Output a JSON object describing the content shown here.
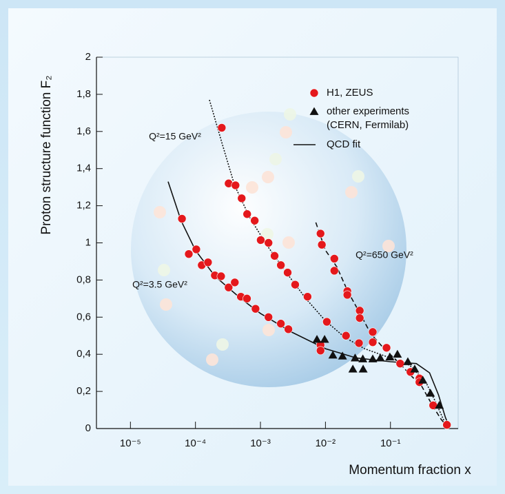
{
  "chart_data": {
    "type": "scatter",
    "x_label": "Momentum fraction x",
    "y_label": "Proton structure function F₂",
    "xlog": true,
    "xlim": [
      3e-06,
      1.1
    ],
    "ylim": [
      0,
      2
    ],
    "xticks": [
      {
        "value": 1e-05,
        "label": "10⁻⁵"
      },
      {
        "value": 0.0001,
        "label": "10⁻⁴"
      },
      {
        "value": 0.001,
        "label": "10⁻³"
      },
      {
        "value": 0.01,
        "label": "10⁻²"
      },
      {
        "value": 0.1,
        "label": "10⁻¹"
      }
    ],
    "yticks": [
      0,
      {
        "value": 0.2,
        "label": "0,2"
      },
      {
        "value": 0.4,
        "label": "0,4"
      },
      {
        "value": 0.6,
        "label": "0,6"
      },
      {
        "value": 0.8,
        "label": "0,8"
      },
      1,
      {
        "value": 1.2,
        "label": "1,2"
      },
      {
        "value": 1.4,
        "label": "1,4"
      },
      {
        "value": 1.6,
        "label": "1,6"
      },
      {
        "value": 1.8,
        "label": "1,8"
      },
      2
    ],
    "series": [
      {
        "name": "H1, ZEUS",
        "marker": "circle",
        "color": "#e4181c",
        "x": [
          6.2e-05,
          7.9e-05,
          0.000103,
          0.000125,
          0.000156,
          0.000199,
          0.000248,
          0.000324,
          0.000403,
          0.0005,
          0.00062,
          0.00084,
          0.00133,
          0.00206,
          0.00269,
          0.000254,
          0.000324,
          0.000413,
          0.000514,
          0.000624,
          0.000815,
          0.00101,
          0.00133,
          0.00165,
          0.00206,
          0.00262,
          0.00342,
          0.0053,
          0.0105,
          0.0207,
          0.0328,
          0.0084,
          0.0088,
          0.0137,
          0.0137,
          0.0217,
          0.0217,
          0.0337,
          0.0337,
          0.0534,
          0.0534,
          0.087,
          0.141,
          0.203,
          0.279,
          0.279,
          0.454,
          0.738,
          0.0084,
          0.0084
        ],
        "values": [
          1.13,
          0.94,
          0.965,
          0.88,
          0.895,
          0.825,
          0.82,
          0.76,
          0.787,
          0.71,
          0.7,
          0.645,
          0.6,
          0.565,
          0.535,
          1.62,
          1.32,
          1.31,
          1.24,
          1.155,
          1.12,
          1.015,
          1.0,
          0.93,
          0.88,
          0.84,
          0.775,
          0.71,
          0.575,
          0.5,
          0.46,
          1.05,
          0.99,
          0.915,
          0.85,
          0.74,
          0.72,
          0.635,
          0.595,
          0.52,
          0.465,
          0.435,
          0.35,
          0.305,
          0.27,
          0.25,
          0.125,
          0.02,
          0.45,
          0.42
        ]
      },
      {
        "name": "other experiments",
        "name_line2": "(CERN, Fermilab)",
        "marker": "triangle",
        "color": "#111111",
        "x": [
          0.0074,
          0.0097,
          0.013,
          0.0183,
          0.0264,
          0.0286,
          0.038,
          0.0376,
          0.0534,
          0.0698,
          0.098,
          0.128,
          0.185,
          0.236,
          0.315,
          0.412,
          0.565
        ],
        "values": [
          0.48,
          0.48,
          0.395,
          0.39,
          0.32,
          0.38,
          0.32,
          0.375,
          0.375,
          0.38,
          0.385,
          0.4,
          0.36,
          0.32,
          0.26,
          0.19,
          0.125
        ]
      }
    ],
    "fit_label": "QCD fit",
    "fit_curves": [
      {
        "dash": "solid",
        "x": [
          3.8e-05,
          6e-05,
          0.0001,
          0.0002,
          0.0005,
          0.001,
          0.003,
          0.01,
          0.03,
          0.1,
          0.25,
          0.4,
          0.55,
          0.7,
          0.8
        ],
        "values": [
          1.33,
          1.12,
          0.96,
          0.82,
          0.7,
          0.62,
          0.52,
          0.43,
          0.38,
          0.36,
          0.35,
          0.3,
          0.18,
          0.06,
          0.01
        ]
      },
      {
        "dash": "dotted",
        "x": [
          0.000164,
          0.00025,
          0.0004,
          0.0007,
          0.0013,
          0.0025,
          0.005,
          0.01,
          0.02,
          0.04,
          0.1,
          0.2,
          0.35,
          0.5,
          0.65,
          0.78
        ],
        "values": [
          1.77,
          1.55,
          1.31,
          1.13,
          0.98,
          0.84,
          0.7,
          0.58,
          0.49,
          0.43,
          0.38,
          0.34,
          0.25,
          0.14,
          0.05,
          0.01
        ]
      },
      {
        "dash": "dashed",
        "x": [
          0.0071,
          0.01,
          0.015,
          0.022,
          0.034,
          0.05,
          0.08,
          0.14,
          0.2,
          0.3,
          0.45,
          0.6,
          0.75
        ],
        "values": [
          1.11,
          0.96,
          0.87,
          0.74,
          0.62,
          0.51,
          0.43,
          0.35,
          0.29,
          0.23,
          0.12,
          0.05,
          0.01
        ]
      }
    ],
    "annotations": [
      "Q²=15 GeV²",
      "Q²=3.5 GeV²",
      "Q²=650 GeV²"
    ]
  }
}
